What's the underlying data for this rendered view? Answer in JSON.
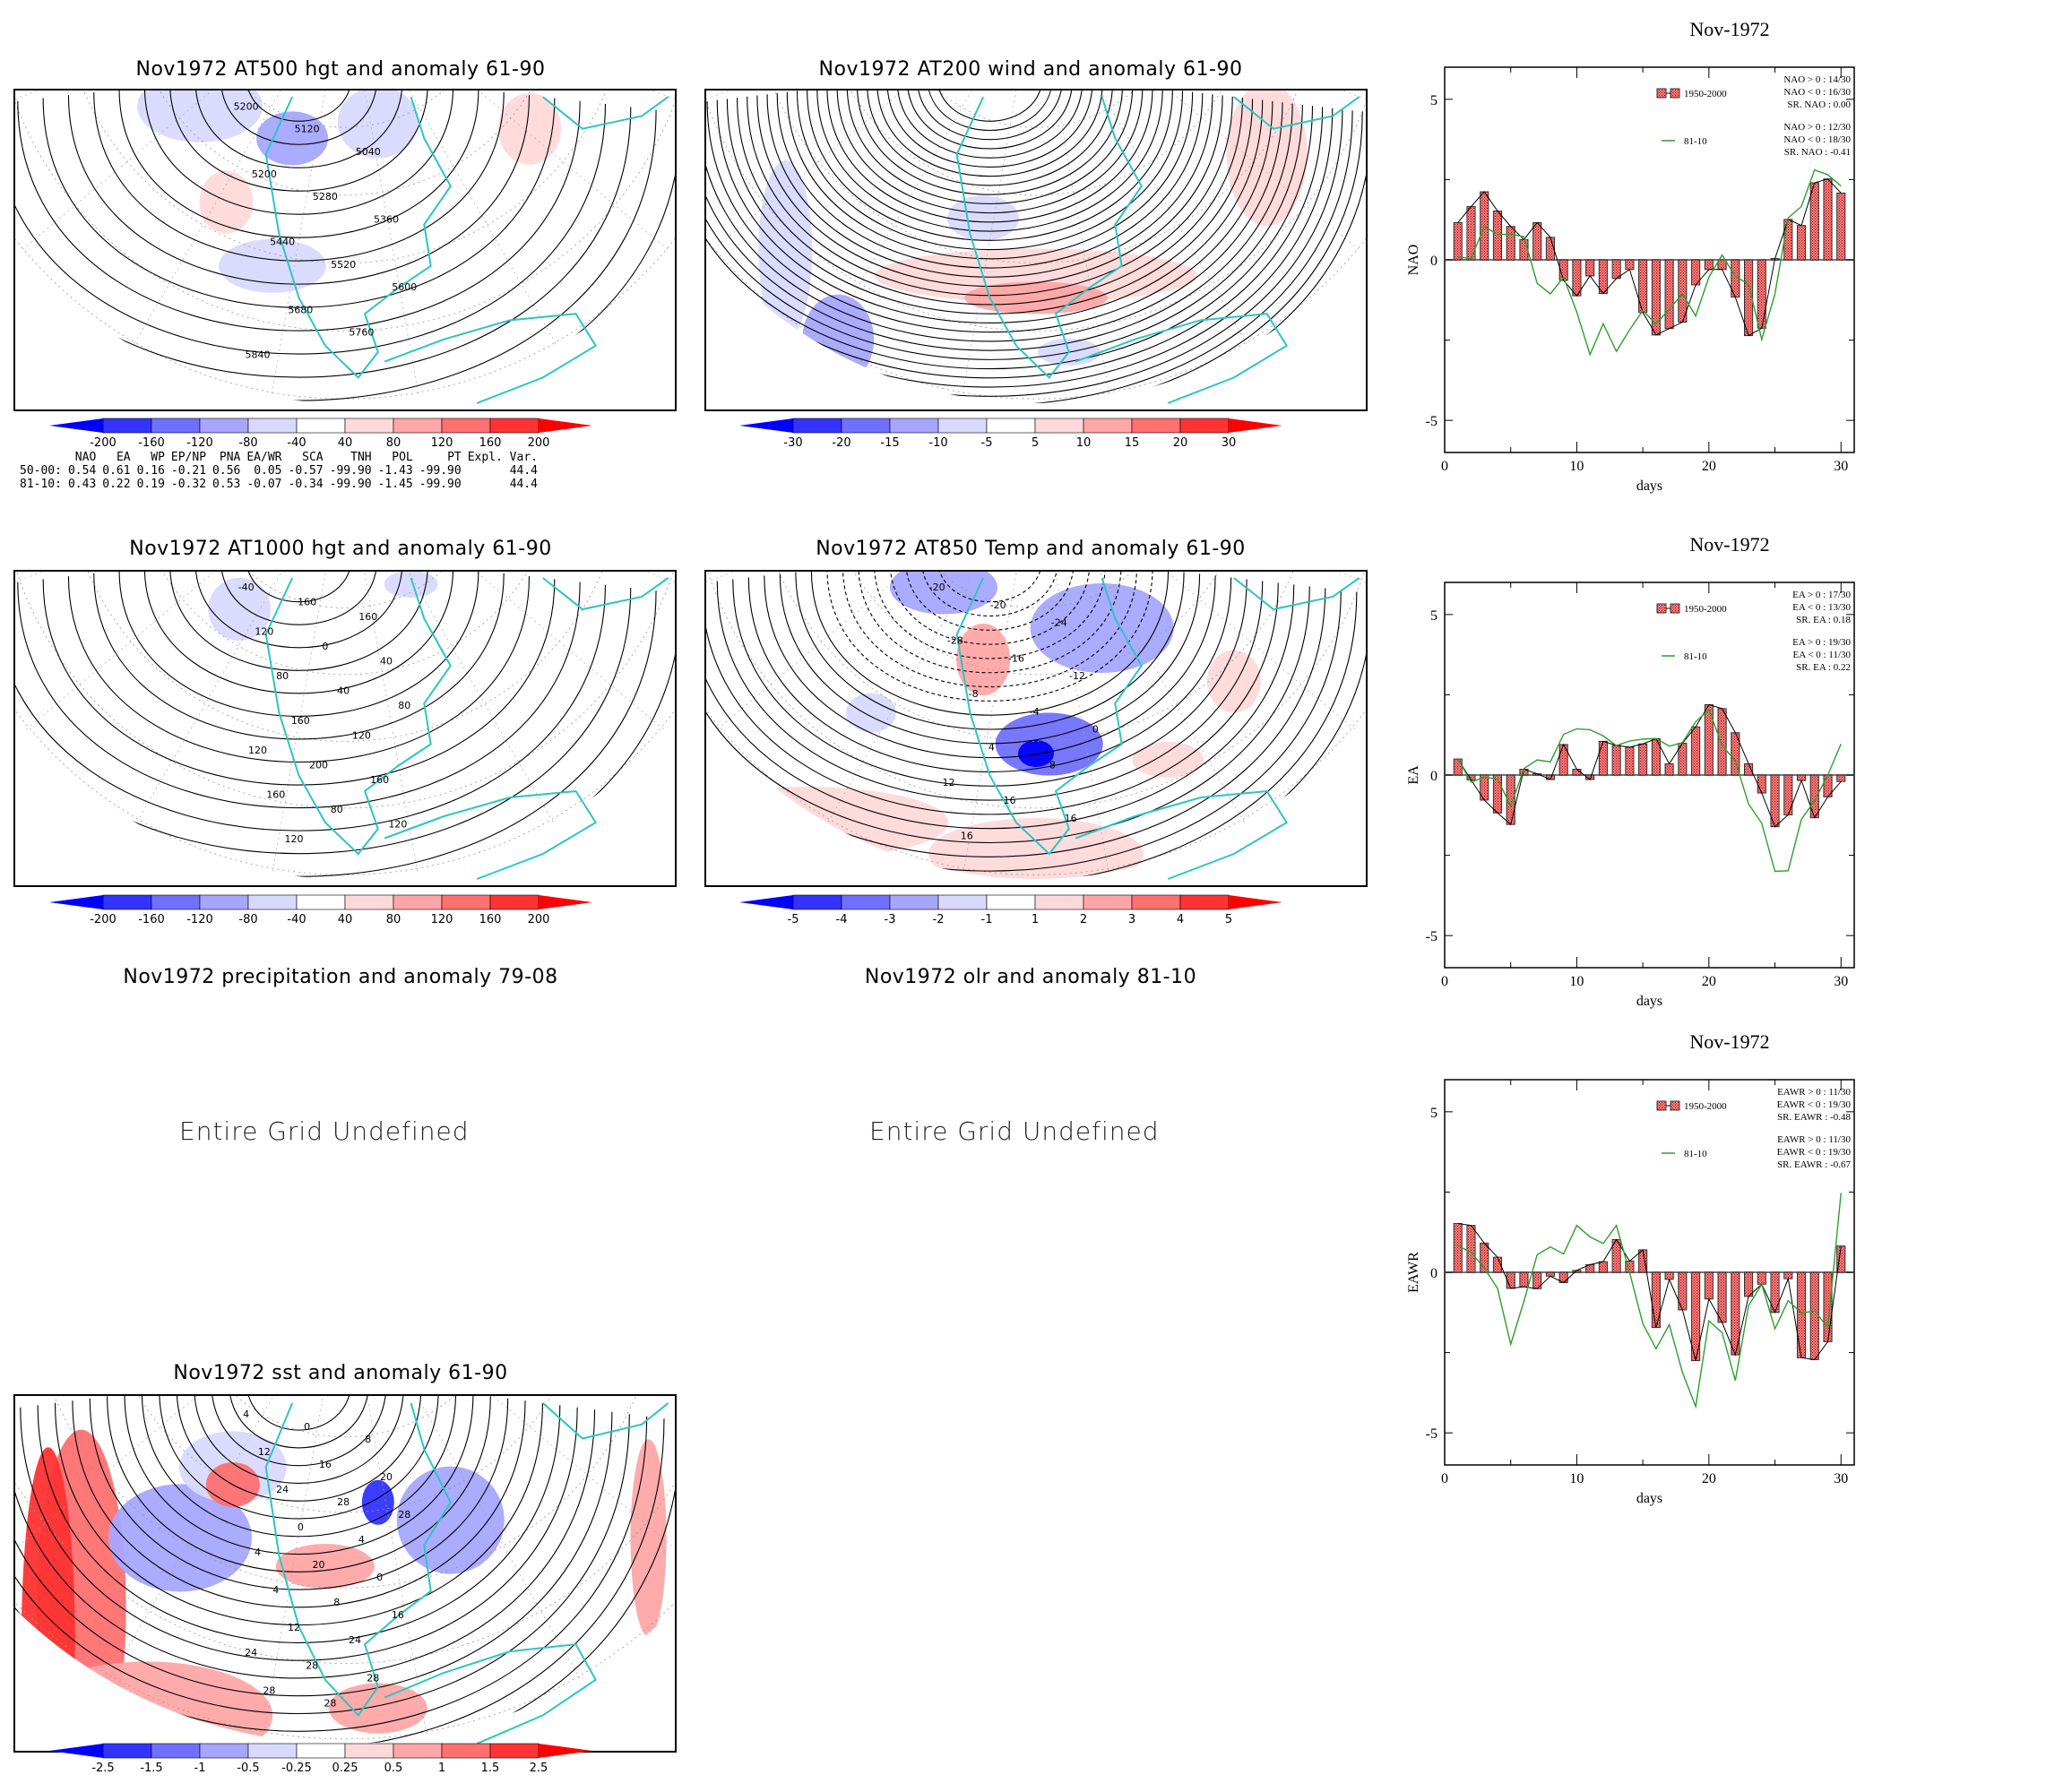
{
  "maps": [
    {
      "id": "at500",
      "title": "Nov1972 AT500 hgt and anomaly 61-90",
      "contour_labels": [
        "5200",
        "5120",
        "5040",
        "5200",
        "5280",
        "5360",
        "5440",
        "5520",
        "5600",
        "5680",
        "5760",
        "5840"
      ],
      "colorbar": [
        "-200",
        "-160",
        "-120",
        "-80",
        "-40",
        "40",
        "80",
        "120",
        "160",
        "200"
      ]
    },
    {
      "id": "at200",
      "title": "Nov1972 AT200 wind and anomaly 61-90",
      "contour_labels": [],
      "colorbar": [
        "-30",
        "-20",
        "-15",
        "-10",
        "-5",
        "5",
        "10",
        "15",
        "20",
        "30"
      ]
    },
    {
      "id": "at1000",
      "title": "Nov1972 AT1000 hgt and anomaly 61-90",
      "contour_labels": [
        "-40",
        "160",
        "160",
        "120",
        "0",
        "40",
        "80",
        "40",
        "80",
        "160",
        "120",
        "120",
        "200",
        "160",
        "160",
        "80",
        "120",
        "120"
      ],
      "colorbar": [
        "-200",
        "-160",
        "-120",
        "-80",
        "-40",
        "40",
        "80",
        "120",
        "160",
        "200"
      ]
    },
    {
      "id": "at850",
      "title": "Nov1972 AT850 Temp and anomaly 61-90",
      "contour_labels": [
        "-20",
        "-20",
        "-24",
        "-28",
        "-16",
        "-12",
        "-8",
        "-4",
        "0",
        "4",
        "8",
        "12",
        "16",
        "16",
        "16"
      ],
      "colorbar": [
        "-5",
        "-4",
        "-3",
        "-2",
        "-1",
        "1",
        "2",
        "3",
        "4",
        "5"
      ]
    },
    {
      "id": "precip",
      "title": "Nov1972 precipitation and anomaly 79-08",
      "message": "Entire Grid Undefined"
    },
    {
      "id": "olr",
      "title": "Nov1972 olr and anomaly 81-10",
      "message": "Entire Grid Undefined"
    },
    {
      "id": "sst",
      "title": "Nov1972 sst and anomaly 61-90",
      "contour_labels": [
        "4",
        "0",
        "8",
        "12",
        "16",
        "20",
        "24",
        "28",
        "28",
        "0",
        "4",
        "4",
        "20",
        "0",
        "4",
        "8",
        "16",
        "12",
        "24",
        "24",
        "28",
        "28",
        "28",
        "28"
      ],
      "colorbar": [
        "-2.5",
        "-1.5",
        "-1",
        "-0.5",
        "-0.25",
        "0.25",
        "0.5",
        "1",
        "1.5",
        "2.5"
      ]
    }
  ],
  "colors": {
    "neg": [
      "#0000ff",
      "#3333ff",
      "#7070ff",
      "#a6a6ff",
      "#d9d9ff"
    ],
    "pos": [
      "#ffd9d9",
      "#ffa6a6",
      "#ff7070",
      "#ff3333",
      "#ff0000"
    ],
    "coast": "#2ec4c4",
    "bar": "#f08080",
    "line_green": "#2ca02c"
  },
  "index_table": {
    "headers": [
      "",
      "NAO",
      "EA",
      "WP",
      "EP/NP",
      "PNA",
      "EA/WR",
      "SCA",
      "TNH",
      "POL",
      "PT",
      "Expl. Var."
    ],
    "rows": [
      [
        "50-00:",
        "0.54",
        "0.61",
        "0.16",
        "-0.21",
        "0.56",
        "0.05",
        "-0.57",
        "-99.90",
        "-1.43",
        "-99.90",
        "44.4"
      ],
      [
        "81-10:",
        "0.43",
        "0.22",
        "0.19",
        "-0.32",
        "0.53",
        "-0.07",
        "-0.34",
        "-99.90",
        "-1.45",
        "-99.90",
        "44.4"
      ]
    ]
  },
  "chart_data": [
    {
      "type": "bar",
      "title": "Nov-1972",
      "xlabel": "days",
      "ylabel": "NAO",
      "xlim": [
        0,
        31
      ],
      "ylim": [
        -6,
        6
      ],
      "xticks": [
        0,
        10,
        20,
        30
      ],
      "yticks": [
        5,
        0,
        -5
      ],
      "x": [
        1,
        2,
        3,
        4,
        5,
        6,
        7,
        8,
        9,
        10,
        11,
        12,
        13,
        14,
        15,
        16,
        17,
        18,
        19,
        20,
        21,
        22,
        23,
        24,
        25,
        26,
        27,
        28,
        29,
        30
      ],
      "series": [
        {
          "name": "1950-2000",
          "kind": "bar",
          "values": [
            1.16,
            1.66,
            2.12,
            1.52,
            1.04,
            0.63,
            1.16,
            0.7,
            -0.64,
            -1.12,
            -0.5,
            -1.05,
            -0.58,
            -0.3,
            -1.64,
            -2.34,
            -2.14,
            -1.94,
            -0.78,
            -0.3,
            -0.3,
            -1.16,
            -2.36,
            -2.13,
            0.04,
            1.26,
            1.07,
            2.4,
            2.52,
            2.08
          ]
        },
        {
          "name": "81-10",
          "kind": "line",
          "values": [
            0.09,
            0.04,
            1.04,
            0.79,
            0.8,
            0.72,
            -0.73,
            -1.06,
            -0.54,
            -1.63,
            -2.95,
            -1.99,
            -2.85,
            -2.18,
            -1.58,
            -2.0,
            -1.53,
            -1.06,
            -1.75,
            -0.54,
            0.15,
            -0.52,
            -0.75,
            -2.48,
            -1.06,
            1.31,
            1.66,
            2.8,
            2.65,
            2.3
          ]
        }
      ],
      "legend_stats": {
        "1950-2000": [
          "NAO > 0 : 14/30",
          "NAO < 0 : 16/30",
          "SR. NAO :  0.00"
        ],
        "81-10": [
          "NAO > 0 : 12/30",
          "NAO < 0 : 18/30",
          "SR. NAO : -0.41"
        ]
      },
      "legend": "top-right"
    },
    {
      "type": "bar",
      "title": "Nov-1972",
      "xlabel": "days",
      "ylabel": "EA",
      "xlim": [
        0,
        31
      ],
      "ylim": [
        -6,
        6
      ],
      "xticks": [
        0,
        10,
        20,
        30
      ],
      "yticks": [
        5,
        0,
        -5
      ],
      "x": [
        1,
        2,
        3,
        4,
        5,
        6,
        7,
        8,
        9,
        10,
        11,
        12,
        13,
        14,
        15,
        16,
        17,
        18,
        19,
        20,
        21,
        22,
        23,
        24,
        25,
        26,
        27,
        28,
        29,
        30
      ],
      "series": [
        {
          "name": "1950-2000",
          "kind": "bar",
          "values": [
            0.5,
            -0.15,
            -0.78,
            -1.18,
            -1.54,
            0.18,
            0.04,
            -0.14,
            0.95,
            0.18,
            -0.14,
            1.05,
            0.92,
            0.87,
            0.97,
            1.13,
            0.35,
            0.99,
            1.5,
            2.19,
            2.07,
            1.32,
            0.35,
            -0.56,
            -1.61,
            -1.24,
            -0.17,
            -1.33,
            -0.68,
            -0.2
          ]
        },
        {
          "name": "81-10",
          "kind": "line",
          "values": [
            0.5,
            -0.22,
            -0.07,
            -0.12,
            -0.97,
            0.2,
            0.47,
            0.41,
            1.27,
            1.44,
            1.41,
            1.22,
            0.92,
            1.06,
            1.12,
            1.14,
            0.9,
            1.01,
            1.66,
            2.04,
            0.92,
            0.44,
            -0.9,
            -1.5,
            -3.0,
            -2.98,
            -1.38,
            -0.8,
            0.0,
            0.97
          ]
        }
      ],
      "legend_stats": {
        "1950-2000": [
          "EA > 0 : 17/30",
          "EA < 0 : 13/30",
          "SR. EA :  0.18"
        ],
        "81-10": [
          "EA > 0 : 19/30",
          "EA < 0 : 11/30",
          "SR. EA :  0.22"
        ]
      },
      "legend": "top-right"
    },
    {
      "type": "bar",
      "title": "Nov-1972",
      "xlabel": "days",
      "ylabel": "EAWR",
      "xlim": [
        0,
        31
      ],
      "ylim": [
        -6,
        6
      ],
      "xticks": [
        0,
        10,
        20,
        30
      ],
      "yticks": [
        5,
        0,
        -5
      ],
      "x": [
        1,
        2,
        3,
        4,
        5,
        6,
        7,
        8,
        9,
        10,
        11,
        12,
        13,
        14,
        15,
        16,
        17,
        18,
        19,
        20,
        21,
        22,
        23,
        24,
        25,
        26,
        27,
        28,
        29,
        30
      ],
      "series": [
        {
          "name": "1950-2000",
          "kind": "bar",
          "values": [
            1.52,
            1.46,
            0.91,
            0.47,
            -0.5,
            -0.45,
            -0.51,
            -0.12,
            -0.32,
            0.06,
            0.24,
            0.33,
            1.02,
            0.35,
            0.7,
            -1.72,
            -0.22,
            -1.17,
            -2.75,
            -0.83,
            -1.56,
            -2.57,
            -0.75,
            -0.37,
            -1.25,
            -0.2,
            -2.66,
            -2.72,
            -2.16,
            0.82
          ]
        },
        {
          "name": "81-10",
          "kind": "line",
          "values": [
            0.83,
            0.62,
            0.13,
            -0.5,
            -2.24,
            -0.9,
            0.55,
            0.79,
            0.57,
            1.46,
            1.1,
            0.9,
            1.46,
            -0.01,
            -1.6,
            -2.38,
            -1.63,
            -3.12,
            -4.18,
            -1.51,
            -1.88,
            -3.37,
            -1.04,
            -0.37,
            -1.76,
            -0.88,
            -1.27,
            -1.2,
            -1.72,
            2.47
          ]
        }
      ],
      "legend_stats": {
        "1950-2000": [
          "EAWR > 0 : 11/30",
          "EAWR < 0 : 19/30",
          "SR. EAWR : -0.48"
        ],
        "81-10": [
          "EAWR > 0 : 11/30",
          "EAWR < 0 : 19/30",
          "SR. EAWR : -0.67"
        ]
      },
      "legend": "top-right"
    }
  ]
}
